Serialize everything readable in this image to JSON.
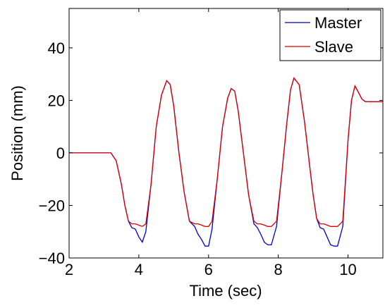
{
  "chart_data": {
    "type": "line",
    "title": "",
    "xlabel": "Time (sec)",
    "ylabel": "Position (mm)",
    "xlim": [
      2,
      11
    ],
    "ylim": [
      -40,
      55
    ],
    "xticks": [
      2,
      4,
      6,
      8,
      10
    ],
    "yticks": [
      -40,
      -20,
      0,
      20,
      40
    ],
    "xtick_labels": [
      "2",
      "4",
      "6",
      "8",
      "10"
    ],
    "ytick_labels": [
      "−40",
      "−20",
      "0",
      "20",
      "40"
    ],
    "grid": false,
    "legend": {
      "position": "top-right"
    },
    "series": [
      {
        "name": "Master",
        "color": "#0000cc",
        "x": [
          2.0,
          3.0,
          3.2,
          3.35,
          3.5,
          3.6,
          3.7,
          3.8,
          3.9,
          4.0,
          4.1,
          4.2,
          4.35,
          4.5,
          4.65,
          4.8,
          4.9,
          5.0,
          5.15,
          5.3,
          5.45,
          5.6,
          5.7,
          5.8,
          5.9,
          6.0,
          6.1,
          6.25,
          6.4,
          6.55,
          6.65,
          6.75,
          6.85,
          7.0,
          7.15,
          7.3,
          7.4,
          7.5,
          7.6,
          7.7,
          7.8,
          7.95,
          8.1,
          8.25,
          8.35,
          8.45,
          8.6,
          8.75,
          8.9,
          9.0,
          9.1,
          9.2,
          9.3,
          9.4,
          9.5,
          9.6,
          9.7,
          9.85,
          10.0,
          10.1,
          10.2,
          10.3,
          10.4,
          10.5,
          10.75,
          11.0
        ],
        "y": [
          0.0,
          0.0,
          0.0,
          -3.0,
          -12.0,
          -20.0,
          -26.0,
          -28.5,
          -29.0,
          -32.0,
          -34.0,
          -30.0,
          -12.0,
          10.0,
          22.0,
          27.5,
          26.0,
          18.0,
          0.0,
          -15.0,
          -26.0,
          -28.0,
          -31.0,
          -33.0,
          -35.5,
          -35.5,
          -29.0,
          -10.0,
          10.0,
          21.0,
          24.5,
          23.5,
          16.0,
          0.0,
          -16.0,
          -27.0,
          -28.5,
          -31.0,
          -34.0,
          -35.0,
          -35.0,
          -28.0,
          -8.0,
          12.0,
          24.0,
          28.5,
          26.0,
          12.0,
          -5.0,
          -16.0,
          -25.0,
          -28.5,
          -29.0,
          -32.0,
          -35.0,
          -35.5,
          -35.5,
          -28.0,
          5.0,
          20.0,
          25.5,
          23.0,
          20.5,
          19.5,
          19.5,
          19.5
        ]
      },
      {
        "name": "Slave",
        "color": "#dd0000",
        "x": [
          2.0,
          3.0,
          3.2,
          3.35,
          3.5,
          3.6,
          3.7,
          3.8,
          3.9,
          4.0,
          4.1,
          4.2,
          4.35,
          4.5,
          4.65,
          4.8,
          4.9,
          5.0,
          5.15,
          5.3,
          5.45,
          5.6,
          5.7,
          5.8,
          5.9,
          6.0,
          6.1,
          6.25,
          6.4,
          6.55,
          6.65,
          6.75,
          6.85,
          7.0,
          7.15,
          7.3,
          7.4,
          7.5,
          7.6,
          7.7,
          7.8,
          7.95,
          8.1,
          8.25,
          8.35,
          8.45,
          8.6,
          8.75,
          8.9,
          9.0,
          9.1,
          9.2,
          9.3,
          9.4,
          9.5,
          9.6,
          9.7,
          9.85,
          10.0,
          10.1,
          10.2,
          10.3,
          10.4,
          10.5,
          10.75,
          11.0
        ],
        "y": [
          0.0,
          0.0,
          0.0,
          -3.0,
          -12.0,
          -20.0,
          -26.0,
          -27.0,
          -27.0,
          -27.5,
          -28.0,
          -27.0,
          -12.0,
          10.0,
          22.0,
          27.5,
          26.0,
          18.0,
          0.0,
          -15.0,
          -26.0,
          -27.0,
          -27.0,
          -27.5,
          -28.0,
          -28.0,
          -26.0,
          -10.0,
          10.0,
          21.0,
          24.5,
          23.5,
          16.0,
          0.0,
          -16.0,
          -26.0,
          -27.0,
          -27.0,
          -27.5,
          -28.0,
          -28.0,
          -26.0,
          -8.0,
          12.0,
          24.0,
          28.5,
          26.0,
          12.0,
          -5.0,
          -16.0,
          -25.0,
          -27.0,
          -27.0,
          -27.5,
          -28.0,
          -28.0,
          -28.0,
          -26.0,
          5.0,
          20.0,
          25.5,
          23.0,
          20.5,
          19.5,
          19.5,
          19.5
        ]
      }
    ]
  }
}
